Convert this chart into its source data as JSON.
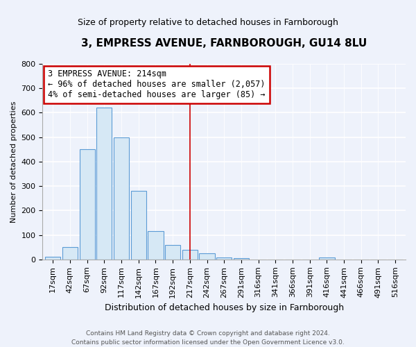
{
  "title": "3, EMPRESS AVENUE, FARNBOROUGH, GU14 8LU",
  "subtitle": "Size of property relative to detached houses in Farnborough",
  "xlabel": "Distribution of detached houses by size in Farnborough",
  "ylabel": "Number of detached properties",
  "bar_labels": [
    "17sqm",
    "42sqm",
    "67sqm",
    "92sqm",
    "117sqm",
    "142sqm",
    "167sqm",
    "192sqm",
    "217sqm",
    "242sqm",
    "267sqm",
    "291sqm",
    "316sqm",
    "341sqm",
    "366sqm",
    "391sqm",
    "416sqm",
    "441sqm",
    "466sqm",
    "491sqm",
    "516sqm"
  ],
  "bar_values": [
    12,
    50,
    450,
    620,
    500,
    280,
    115,
    60,
    38,
    25,
    8,
    5,
    0,
    0,
    0,
    0,
    8,
    0,
    0,
    0,
    0
  ],
  "bar_color": "#d6e8f5",
  "bar_edge_color": "#5b9bd5",
  "vline_x": 8,
  "vline_color": "#cc0000",
  "annotation_title": "3 EMPRESS AVENUE: 214sqm",
  "annotation_line1": "← 96% of detached houses are smaller (2,057)",
  "annotation_line2": "4% of semi-detached houses are larger (85) →",
  "annotation_box_color": "#ffffff",
  "annotation_box_edge": "#cc0000",
  "ylim": [
    0,
    800
  ],
  "yticks": [
    0,
    100,
    200,
    300,
    400,
    500,
    600,
    700,
    800
  ],
  "footer1": "Contains HM Land Registry data © Crown copyright and database right 2024.",
  "footer2": "Contains public sector information licensed under the Open Government Licence v3.0.",
  "bg_color": "#eef2fb",
  "plot_bg_color": "#eef2fb",
  "grid_color": "#ffffff",
  "annotation_fontsize": 8.5,
  "title_fontsize": 11,
  "subtitle_fontsize": 9,
  "xlabel_fontsize": 9,
  "ylabel_fontsize": 8,
  "tick_fontsize": 8,
  "footer_fontsize": 6.5
}
